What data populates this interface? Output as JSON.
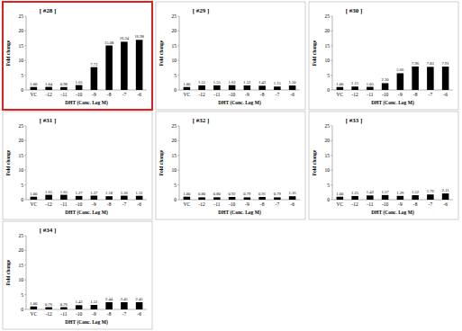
{
  "chart_data": [
    {
      "type": "bar",
      "title": "[ #28 ]",
      "x_label": "DHT (Conc. Log M)",
      "y_label": "Fold change",
      "categories": [
        "VC",
        "-12",
        "-11",
        "-10",
        "-9",
        "-8",
        "-7",
        "-6"
      ],
      "values": [
        1.0,
        1.04,
        0.98,
        1.65,
        7.73,
        15.08,
        16.34,
        16.98
      ],
      "value_labels": [
        "1.00",
        "1.04",
        "0.98",
        "1.65",
        "7.73",
        "15.08",
        "16.34",
        "16.98"
      ],
      "color": "#000000",
      "ylim": [
        0,
        25
      ],
      "yticks": [
        0,
        5,
        10,
        15,
        20,
        25
      ],
      "grid": false,
      "data_labels": true
    },
    {
      "type": "bar",
      "title": "[ #29 ]",
      "x_label": "DHT (Conc. Log M)",
      "y_label": "Fold change",
      "categories": [
        "VC",
        "-12",
        "-11",
        "-10",
        "-9",
        "-8",
        "-7",
        "-6"
      ],
      "values": [
        1.0,
        1.55,
        1.55,
        1.62,
        1.52,
        1.43,
        1.15,
        1.5
      ],
      "value_labels": [
        "1.00",
        "1.55",
        "1.55",
        "1.62",
        "1.52",
        "1.43",
        "1.15",
        "1.50"
      ],
      "color": "#000000",
      "ylim": [
        0,
        25
      ],
      "yticks": [
        0,
        5,
        10,
        15,
        20,
        25
      ],
      "grid": false,
      "data_labels": true
    },
    {
      "type": "bar",
      "title": "[ #30 ]",
      "x_label": "DHT (Conc. Log M)",
      "y_label": "Fold change",
      "categories": [
        "VC",
        "-12",
        "-11",
        "-10",
        "-9",
        "-8",
        "-7",
        "-6"
      ],
      "values": [
        1.0,
        1.15,
        1.05,
        2.3,
        5.66,
        7.96,
        7.83,
        7.91
      ],
      "value_labels": [
        "1.00",
        "1.15",
        "1.05",
        "2.30",
        "5.66",
        "7.96",
        "7.83",
        "7.91"
      ],
      "color": "#000000",
      "ylim": [
        0,
        25
      ],
      "yticks": [
        0,
        5,
        10,
        15,
        20,
        25
      ],
      "grid": false,
      "data_labels": true
    },
    {
      "type": "bar",
      "title": "[ #31 ]",
      "x_label": "DHT (Conc. Log M)",
      "y_label": "Fold change",
      "categories": [
        "VC",
        "-12",
        "-11",
        "-10",
        "-9",
        "-8",
        "-7",
        "-6"
      ],
      "values": [
        1.0,
        1.65,
        1.65,
        1.27,
        1.37,
        1.18,
        1.36,
        1.31
      ],
      "value_labels": [
        "1.00",
        "1.65",
        "1.65",
        "1.27",
        "1.37",
        "1.18",
        "1.36",
        "1.31"
      ],
      "color": "#000000",
      "ylim": [
        0,
        25
      ],
      "yticks": [
        0,
        5,
        10,
        15,
        20,
        25
      ],
      "grid": false,
      "data_labels": true
    },
    {
      "type": "bar",
      "title": "[ #32 ]",
      "x_label": "DHT (Conc. Log M)",
      "y_label": "Fold change",
      "categories": [
        "VC",
        "-12",
        "-11",
        "-10",
        "-9",
        "-8",
        "-7",
        "-6"
      ],
      "values": [
        1.0,
        0.8,
        0.8,
        0.92,
        0.79,
        0.91,
        0.79,
        1.16
      ],
      "value_labels": [
        "1.00",
        "0.80",
        "0.80",
        "0.92",
        "0.79",
        "0.91",
        "0.79",
        "1.16"
      ],
      "color": "#000000",
      "ylim": [
        0,
        25
      ],
      "yticks": [
        0,
        5,
        10,
        15,
        20,
        25
      ],
      "grid": false,
      "data_labels": true
    },
    {
      "type": "bar",
      "title": "[ #33 ]",
      "x_label": "DHT (Conc. Log M)",
      "y_label": "Fold change",
      "categories": [
        "VC",
        "-12",
        "-11",
        "-10",
        "-9",
        "-8",
        "-7",
        "-6"
      ],
      "values": [
        1.0,
        1.25,
        1.43,
        1.57,
        1.29,
        1.52,
        1.76,
        2.11
      ],
      "value_labels": [
        "1.00",
        "1.25",
        "1.43",
        "1.57",
        "1.29",
        "1.52",
        "1.76",
        "2.11"
      ],
      "color": "#000000",
      "ylim": [
        0,
        25
      ],
      "yticks": [
        0,
        5,
        10,
        15,
        20,
        25
      ],
      "grid": false,
      "data_labels": true
    },
    {
      "type": "bar",
      "title": "[ #34 ]",
      "x_label": "DHT (Conc. Log M)",
      "y_label": "Fold change",
      "categories": [
        "VC",
        "-12",
        "-11",
        "-10",
        "-9",
        "-8",
        "-7",
        "-6"
      ],
      "values": [
        1.0,
        0.76,
        0.76,
        1.43,
        1.51,
        2.44,
        2.45,
        2.45
      ],
      "value_labels": [
        "1.00",
        "0.76",
        "0.76",
        "1.43",
        "1.51",
        "2.44",
        "2.45",
        "2.45"
      ],
      "color": "#000000",
      "ylim": [
        0,
        25
      ],
      "yticks": [
        0,
        5,
        10,
        15,
        20,
        25
      ],
      "grid": false,
      "data_labels": true
    }
  ]
}
